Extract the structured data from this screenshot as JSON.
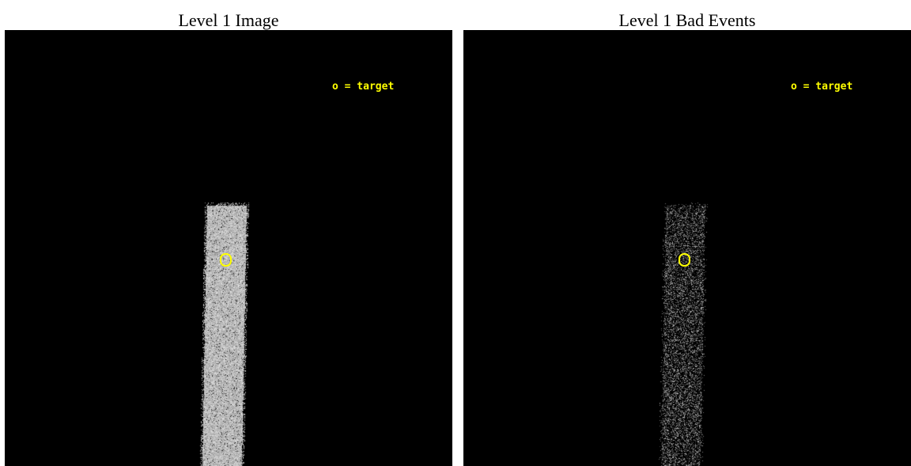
{
  "colors": {
    "background": "#000000",
    "annotation": "#ffff00"
  },
  "panels": [
    {
      "title": "Level 1 Image",
      "legend": "o = target",
      "stripe_brightness": "high"
    },
    {
      "title": "Level 1 Bad Events",
      "legend": "o = target",
      "stripe_brightness": "low"
    }
  ]
}
